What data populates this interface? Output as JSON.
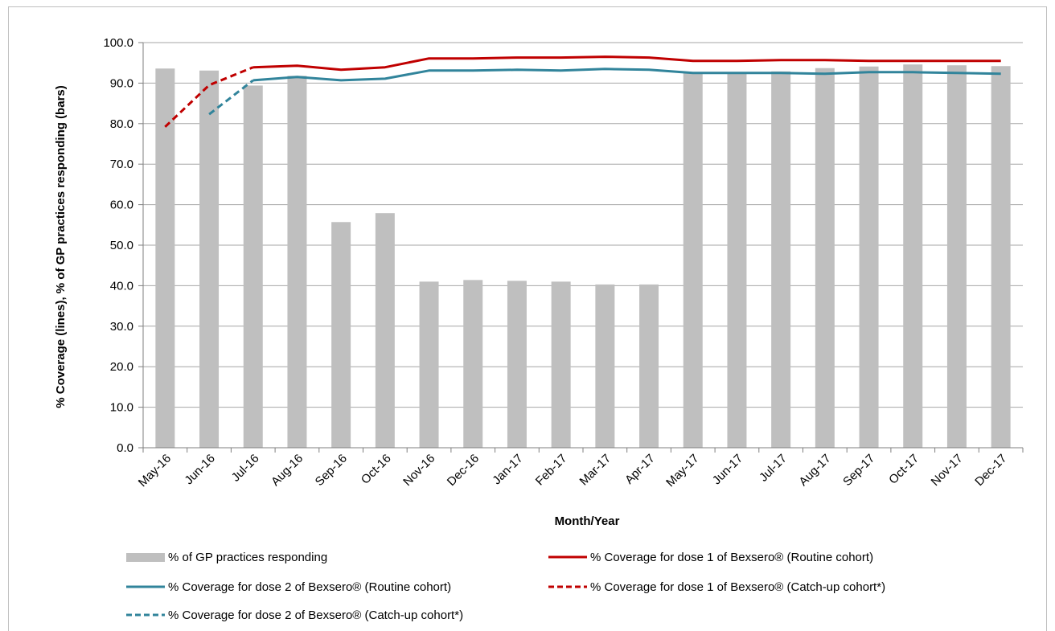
{
  "chart_data": {
    "type": "bar",
    "categories": [
      "May-16",
      "Jun-16",
      "Jul-16",
      "Aug-16",
      "Sep-16",
      "Oct-16",
      "Nov-16",
      "Dec-16",
      "Jan-17",
      "Feb-17",
      "Mar-17",
      "Apr-17",
      "May-17",
      "Jun-17",
      "Jul-17",
      "Aug-17",
      "Sep-17",
      "Oct-17",
      "Nov-17",
      "Dec-17"
    ],
    "xlabel": "Month/Year",
    "ylabel": "% Coverage (lines), % of GP practices responding (bars)",
    "ylim": [
      0,
      100
    ],
    "yticks": [
      "0.0",
      "10.0",
      "20.0",
      "30.0",
      "40.0",
      "50.0",
      "60.0",
      "70.0",
      "80.0",
      "90.0",
      "100.0"
    ],
    "grid": true,
    "legend_position": "bottom",
    "series": [
      {
        "name": "% of GP practices responding",
        "kind": "bar",
        "color": "#bfbfbf",
        "values": [
          93.6,
          93.1,
          89.4,
          91.8,
          55.7,
          57.9,
          41.0,
          41.4,
          41.2,
          41.0,
          40.3,
          40.3,
          92.7,
          92.7,
          92.9,
          93.7,
          94.1,
          94.6,
          94.4,
          94.2
        ]
      },
      {
        "name": "% Coverage for dose 1 of Bexsero® (Routine cohort)",
        "kind": "line",
        "style": "solid",
        "color": "#c00000",
        "values": [
          null,
          null,
          93.9,
          94.3,
          93.3,
          93.9,
          96.1,
          96.1,
          96.3,
          96.3,
          96.5,
          96.3,
          95.5,
          95.5,
          95.7,
          95.7,
          95.5,
          95.5,
          95.5,
          95.5
        ]
      },
      {
        "name": "% Coverage for dose 2 of Bexsero® (Routine cohort)",
        "kind": "line",
        "style": "solid",
        "color": "#31849b",
        "values": [
          null,
          null,
          90.7,
          91.5,
          90.7,
          91.1,
          93.1,
          93.1,
          93.3,
          93.1,
          93.5,
          93.3,
          92.5,
          92.5,
          92.5,
          92.3,
          92.7,
          92.7,
          92.5,
          92.3
        ]
      },
      {
        "name": "% Coverage for dose 1 of Bexsero® (Catch-up cohort*)",
        "kind": "line",
        "style": "dashed",
        "color": "#c00000",
        "values": [
          79.2,
          89.5,
          93.9,
          null,
          null,
          null,
          null,
          null,
          null,
          null,
          null,
          null,
          null,
          null,
          null,
          null,
          null,
          null,
          null,
          null
        ]
      },
      {
        "name": "% Coverage for dose 2 of Bexsero® (Catch-up cohort*)",
        "kind": "line",
        "style": "dashed",
        "color": "#31849b",
        "values": [
          null,
          82.3,
          90.7,
          null,
          null,
          null,
          null,
          null,
          null,
          null,
          null,
          null,
          null,
          null,
          null,
          null,
          null,
          null,
          null,
          null
        ]
      }
    ]
  }
}
